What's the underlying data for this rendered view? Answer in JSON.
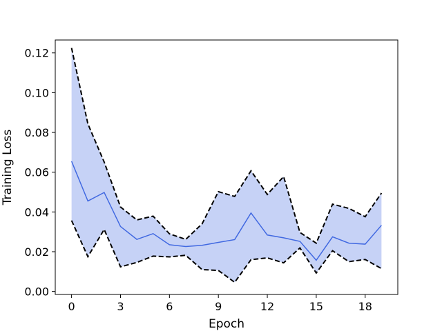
{
  "chart_data": {
    "type": "line",
    "title": "",
    "xlabel": "Epoch",
    "ylabel": "Training Loss",
    "xlim": [
      -1,
      20
    ],
    "ylim": [
      -0.0015,
      0.1265
    ],
    "xticks": [
      0,
      3,
      6,
      9,
      12,
      15,
      18
    ],
    "yticks": [
      0.0,
      0.02,
      0.04,
      0.06,
      0.08,
      0.1,
      0.12
    ],
    "ytick_labels": [
      "0.00",
      "0.02",
      "0.04",
      "0.06",
      "0.08",
      "0.10",
      "0.12"
    ],
    "grid": false,
    "legend": false,
    "x": [
      0,
      1,
      2,
      3,
      4,
      5,
      6,
      7,
      8,
      9,
      10,
      11,
      12,
      13,
      14,
      15,
      16,
      17,
      18,
      19
    ],
    "series": [
      {
        "role": "mean",
        "style": "solid",
        "color": "#4169e1",
        "values": [
          0.0655,
          0.0455,
          0.0498,
          0.0327,
          0.0262,
          0.0291,
          0.0235,
          0.0226,
          0.0232,
          0.0247,
          0.0261,
          0.0395,
          0.0284,
          0.027,
          0.0252,
          0.0157,
          0.0275,
          0.0243,
          0.0238,
          0.0333
        ]
      },
      {
        "role": "upper",
        "style": "dashed",
        "color": "#000000",
        "values": [
          0.1225,
          0.0843,
          0.0651,
          0.0425,
          0.036,
          0.0379,
          0.029,
          0.0262,
          0.034,
          0.0502,
          0.0478,
          0.0607,
          0.0488,
          0.0578,
          0.0297,
          0.0243,
          0.0439,
          0.0418,
          0.0376,
          0.0495
        ]
      },
      {
        "role": "lower",
        "style": "dashed",
        "color": "#000000",
        "values": [
          0.0357,
          0.0175,
          0.0312,
          0.0124,
          0.0146,
          0.0178,
          0.0174,
          0.0182,
          0.011,
          0.0106,
          0.0046,
          0.016,
          0.0169,
          0.0144,
          0.0219,
          0.0093,
          0.0205,
          0.015,
          0.0161,
          0.0115
        ]
      }
    ],
    "band": {
      "between": [
        "lower",
        "upper"
      ],
      "color": "#4169e1",
      "opacity": 0.3
    }
  }
}
